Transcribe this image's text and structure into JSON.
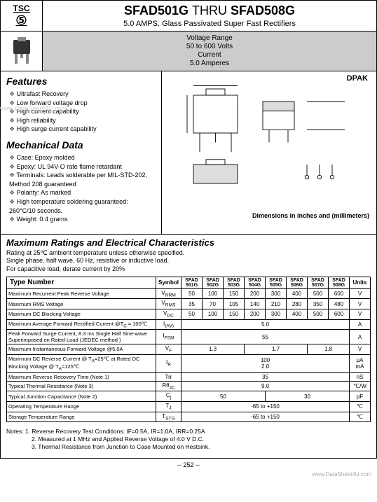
{
  "logo_text": "TSC",
  "title_main_a": "SFAD501G",
  "title_thru": "THRU",
  "title_main_b": "SFAD508G",
  "subtitle": "5.0 AMPS. Glass Passivated Super Fast Rectifiers",
  "vr": {
    "l1": "Voltage Range",
    "l2": "50 to 600 Volts",
    "l3": "Current",
    "l4": "5.0 Amperes"
  },
  "features_title": "Features",
  "features": [
    "Ultrafast Recovery",
    "Low forward voltage drop",
    "High current capability",
    "High reliability",
    "High surge current capability"
  ],
  "mech_title": "Mechanical Data",
  "mech": [
    "Case: Epoxy molded",
    "Epoxy: UL 94V-O rate flame retardant",
    "Terminals: Leads solderable per MIL-STD-202, Method 208 guaranteed",
    "Polarity: As marked",
    "High temperature soldering guaranteed: 260°C/10 seconds.",
    "Weight: 0.4 grams"
  ],
  "dpak_label": "DPAK",
  "dims_note": "Dimensions in inches and (millimeters)",
  "ratings_title": "Maximum Ratings and Electrical Characteristics",
  "ratings_notes": [
    "Rating at 25℃ ambient temperature unless otherwise specified.",
    "Single phase, half wave, 60 Hz, resistive or inductive load.",
    "For capacitive load, derate current by 20%"
  ],
  "table": {
    "headers": [
      "Type Number",
      "Symbol",
      "SFAD 501G",
      "SFAD 502G",
      "SFAD 503G",
      "SFAD 504G",
      "SFAD 505G",
      "SFAD 506G",
      "SFAD 507G",
      "SFAD 508G",
      "Units"
    ],
    "rows": [
      {
        "param": "Maximum Recurrent Peak Reverse Voltage",
        "sym": "V<sub>RRM</sub>",
        "vals": [
          "50",
          "100",
          "150",
          "200",
          "300",
          "400",
          "500",
          "600"
        ],
        "unit": "V"
      },
      {
        "param": "Maximum RMS Voltage",
        "sym": "V<sub>RMS</sub>",
        "vals": [
          "35",
          "70",
          "105",
          "140",
          "210",
          "280",
          "350",
          "480"
        ],
        "unit": "V"
      },
      {
        "param": "Maximum DC Blocking Voltage",
        "sym": "V<sub>DC</sub>",
        "vals": [
          "50",
          "100",
          "150",
          "200",
          "300",
          "400",
          "500",
          "600"
        ],
        "unit": "V"
      },
      {
        "param": "Maximum Average Forward Rectified Current @T<sub>C</sub> = 100℃",
        "sym": "I<sub>(AV)</sub>",
        "span": "5.0",
        "unit": "A"
      },
      {
        "param": "Peak Forward Surge Current, 8.3 ms Single Half Sine-wave Superimposed on Rated Load (JEDEC method )",
        "sym": "I<sub>FSM</sub>",
        "span": "55",
        "unit": "A"
      },
      {
        "param": "Maximum Instantaneous Forward Voltage @5.0A",
        "sym": "V<sub>F</sub>",
        "groups": [
          {
            "c": 3,
            "v": "1.3"
          },
          {
            "c": 3,
            "v": "1.7"
          },
          {
            "c": 2,
            "v": "1.8"
          }
        ],
        "unit": "V"
      },
      {
        "param": "Maximum DC Reverse Current @ T<sub>A</sub>=25℃ at Rated DC Blocking Voltage @ T<sub>A</sub>=125℃",
        "sym": "I<sub>R</sub>",
        "stack": [
          "100",
          "2.0"
        ],
        "unit_stack": [
          "μA",
          "mA"
        ]
      },
      {
        "param": "Maximum Reverse Recovery Time (Note 1)",
        "sym": "Trr",
        "span": "35",
        "unit": "nS"
      },
      {
        "param": "Typical Thermal Resistance (Note 3)",
        "sym": "Rθ<sub>JC</sub>",
        "span": "9.0",
        "unit": "℃/W"
      },
      {
        "param": "Typical Junction Capacitance (Note 2)",
        "sym": "C<sub>j</sub>",
        "groups": [
          {
            "c": 4,
            "v": "50"
          },
          {
            "c": 4,
            "v": "30"
          }
        ],
        "unit": "pF"
      },
      {
        "param": "Operating Temperature Range",
        "sym": "T<sub>J</sub>",
        "span": "-65 to +150",
        "unit": "℃"
      },
      {
        "param": "Storage Temperature Range",
        "sym": "T<sub>STG</sub>",
        "span": "-65 to +150",
        "unit": "℃"
      }
    ]
  },
  "footnotes": [
    "Notes: 1. Reverse Recovery Test Conditions: IF=0.5A, IR=1.0A, IRR=0.25A",
    "2. Measured at 1 MHz and Applied Reverse Voltage of 4.0 V D.C.",
    "3. Thermal Resistance from Junction to Case Mounted on Hestsink."
  ],
  "page_number": "252",
  "watermark_left": "www.DataSheet4U.com",
  "colors": {
    "grey_bg": "#cccccc",
    "border": "#000000"
  }
}
